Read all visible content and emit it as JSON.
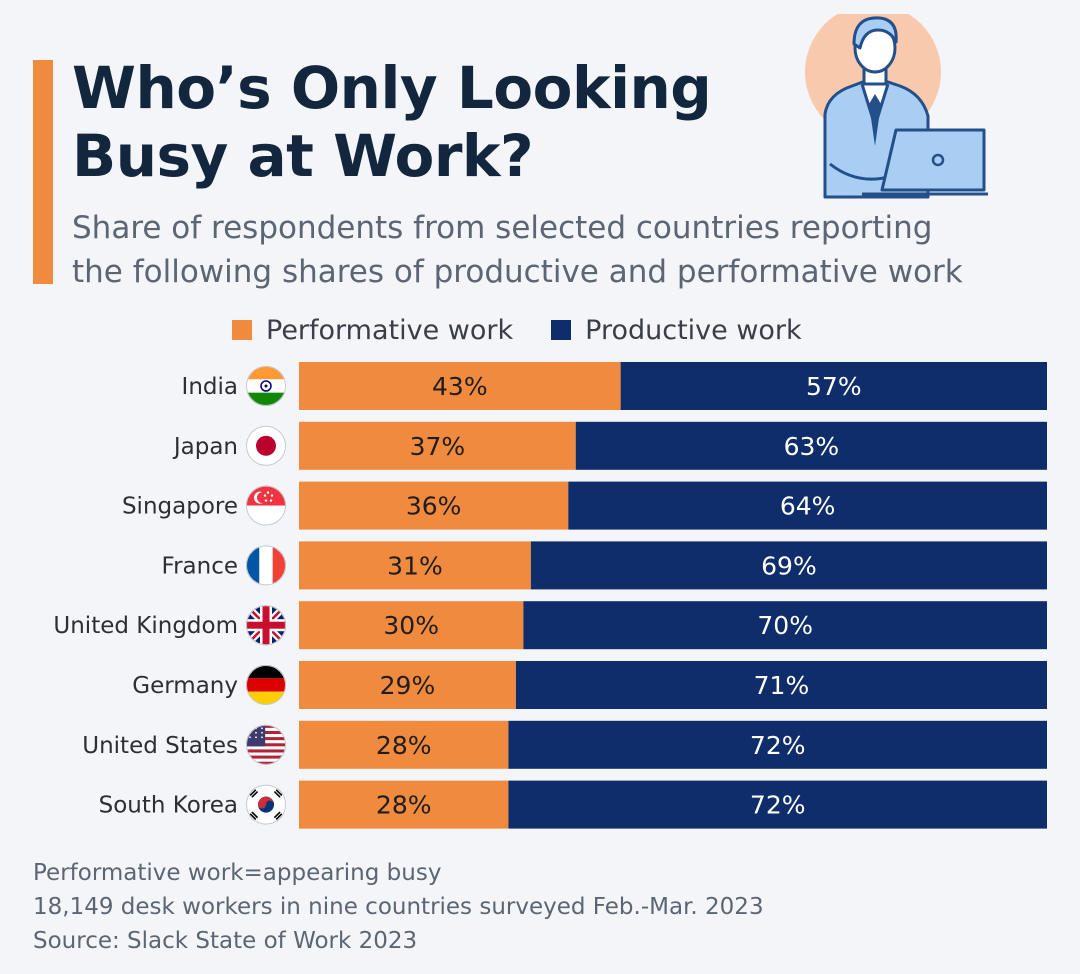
{
  "header": {
    "title_line1": "Who’s Only Looking",
    "title_line2": "Busy at Work?",
    "subtitle_line1": "Share of respondents from selected countries reporting",
    "subtitle_line2": "the following shares of productive and performative work"
  },
  "colors": {
    "performative": "#f08a3e",
    "productive": "#0f2d6b",
    "accent": "#f08a3e",
    "title": "#12263e"
  },
  "legend": {
    "performative_label": "Performative work",
    "productive_label": "Productive work"
  },
  "chart_data": {
    "type": "bar",
    "orientation": "horizontal",
    "stacked": true,
    "percent_of_total": true,
    "categories": [
      "India",
      "Japan",
      "Singapore",
      "France",
      "United Kingdom",
      "Germany",
      "United States",
      "South Korea"
    ],
    "flags": [
      "india-flag-icon",
      "japan-flag-icon",
      "singapore-flag-icon",
      "france-flag-icon",
      "united-kingdom-flag-icon",
      "germany-flag-icon",
      "united-states-flag-icon",
      "south-korea-flag-icon"
    ],
    "series": [
      {
        "name": "Performative work",
        "values": [
          43,
          37,
          36,
          31,
          30,
          29,
          28,
          28
        ]
      },
      {
        "name": "Productive work",
        "values": [
          57,
          63,
          64,
          69,
          70,
          71,
          72,
          72
        ]
      }
    ],
    "value_suffix": "%",
    "xlim": [
      0,
      100
    ],
    "legend_position": "top",
    "grid": false
  },
  "footer": {
    "note1": "Performative work=appearing busy",
    "note2": "18,149 desk workers in nine countries surveyed Feb.-Mar. 2023",
    "source": "Source: Slack State of Work 2023"
  }
}
